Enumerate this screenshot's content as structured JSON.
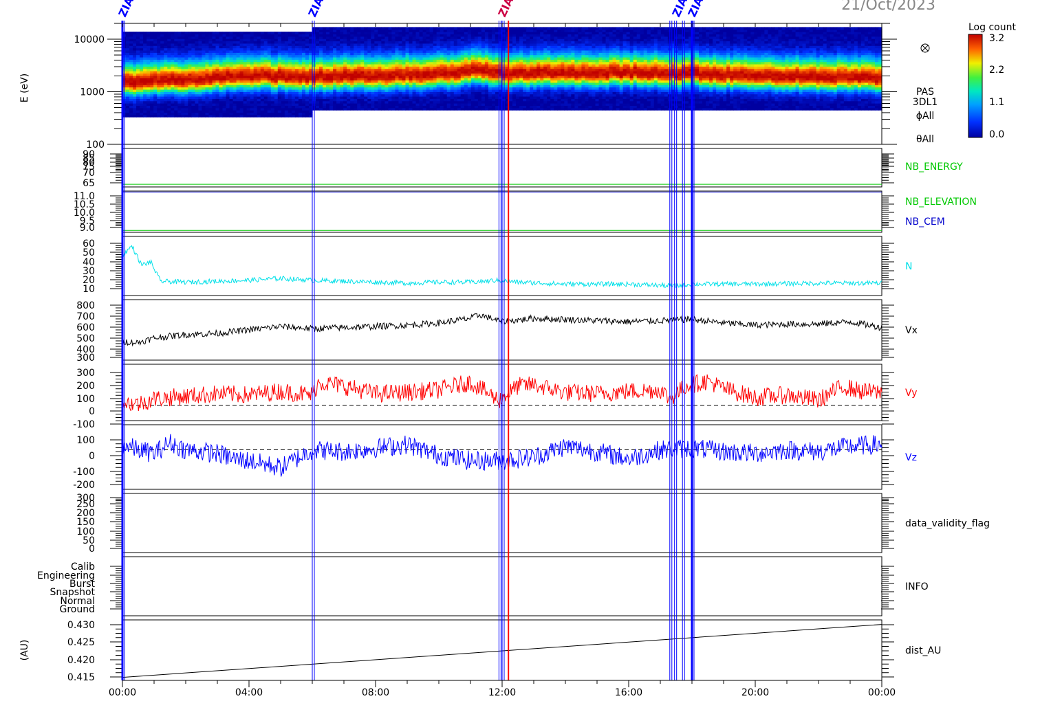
{
  "date_label": "21/Oct/2023",
  "colorbar": {
    "title": "Log count",
    "ticks": [
      "3.2",
      "2.2",
      "1.1",
      "0.0"
    ]
  },
  "spectrogram_labels": [
    "PAS",
    "3DL1",
    "ϕAll",
    "θAll"
  ],
  "marker_icon": "circled-times-icon",
  "event_marker_label": "ZIAS",
  "x_axis": {
    "ticks": [
      "00:00",
      "04:00",
      "08:00",
      "12:00",
      "16:00",
      "20:00",
      "00:00"
    ],
    "range_hours": [
      0,
      24
    ]
  },
  "event_lines_hours": [
    0.0,
    6.0,
    11.9,
    12.0,
    17.3,
    17.45,
    17.7,
    18.0
  ],
  "red_line_hours": 12.2,
  "colors": {
    "N": "#00e0e8",
    "Vx": "#000000",
    "Vy": "#ff0000",
    "Vz": "#0000ff",
    "event": "#0000ff",
    "energy": "#00c800",
    "cem": "#0000cc"
  },
  "chart_data": [
    {
      "type": "heatmap",
      "name": "PAS 3DL1",
      "ylabel": "E (eV)",
      "yscale": "log",
      "ylim": [
        100,
        20000
      ],
      "yticks": [
        "10000",
        "1000",
        "100"
      ],
      "color_scale": "Log count",
      "color_range": [
        0.0,
        3.2
      ],
      "peak_energy_eV": [
        {
          "h": 0,
          "e": 1500
        },
        {
          "h": 2,
          "e": 1700
        },
        {
          "h": 4,
          "e": 2000
        },
        {
          "h": 6,
          "e": 1900
        },
        {
          "h": 8,
          "e": 2000
        },
        {
          "h": 10,
          "e": 2100
        },
        {
          "h": 11.2,
          "e": 2600
        },
        {
          "h": 12,
          "e": 2200
        },
        {
          "h": 14,
          "e": 2300
        },
        {
          "h": 16,
          "e": 2300
        },
        {
          "h": 18,
          "e": 2200
        },
        {
          "h": 20,
          "e": 2000
        },
        {
          "h": 22,
          "e": 1900
        },
        {
          "h": 24,
          "e": 1800
        }
      ]
    },
    {
      "type": "line",
      "right_label": "NB_ENERGY",
      "yticks": [
        "90",
        "85",
        "80",
        "75",
        "70",
        "65"
      ],
      "ylim": [
        63,
        92
      ],
      "series": [
        {
          "name": "NB_ENERGY",
          "values": [
            65,
            65
          ]
        }
      ]
    },
    {
      "type": "line",
      "right_labels": [
        "NB_ELEVATION",
        "NB_CEM"
      ],
      "yticks": [
        "11.0",
        "10.5",
        "10.0",
        "9.5",
        "9.0"
      ],
      "ylim": [
        8.9,
        11.05
      ],
      "series": [
        {
          "name": "NB_ELEVATION",
          "values": [
            9.0,
            9.0
          ]
        },
        {
          "name": "NB_CEM",
          "values": [
            11.0,
            11.0
          ]
        }
      ]
    },
    {
      "type": "line",
      "right_label": "N",
      "yticks": [
        "60",
        "50",
        "40",
        "30",
        "20",
        "10"
      ],
      "ylim": [
        3,
        65
      ],
      "series": [
        {
          "name": "N",
          "x_hours": [
            0,
            0.3,
            0.6,
            0.9,
            1.2,
            2,
            3,
            4,
            5,
            6,
            7,
            8,
            9,
            10,
            11,
            11.9,
            12.5,
            14,
            16,
            17.5,
            18,
            20,
            22,
            24
          ],
          "values": [
            45,
            55,
            35,
            38,
            18,
            17,
            18,
            19,
            21,
            19,
            18,
            17,
            16,
            17,
            17,
            19,
            17,
            15,
            15,
            13,
            15,
            15,
            16,
            16
          ]
        }
      ]
    },
    {
      "type": "line",
      "right_label": "Vx",
      "yticks": [
        "800",
        "700",
        "600",
        "500",
        "400",
        "300"
      ],
      "ylim": [
        290,
        810
      ],
      "series": [
        {
          "name": "Vx",
          "x_hours": [
            0,
            0.5,
            1,
            2,
            3,
            4,
            5,
            6,
            7,
            8,
            9,
            10,
            11,
            11.3,
            12,
            13,
            14,
            15,
            16,
            17,
            18,
            19,
            20,
            21,
            22,
            23,
            24
          ],
          "values": [
            450,
            440,
            480,
            510,
            520,
            550,
            580,
            560,
            570,
            580,
            590,
            610,
            650,
            680,
            620,
            650,
            640,
            630,
            620,
            630,
            640,
            610,
            590,
            600,
            600,
            620,
            570
          ]
        }
      ]
    },
    {
      "type": "line",
      "right_label": "Vy",
      "yticks": [
        "300",
        "200",
        "100",
        "0",
        "-100"
      ],
      "ylim": [
        -120,
        320
      ],
      "series": [
        {
          "name": "Vy",
          "x_hours": [
            0,
            0.5,
            1,
            2,
            3,
            4,
            5,
            6,
            6.2,
            7,
            8,
            9,
            10,
            11,
            11.9,
            12.5,
            13,
            14,
            15,
            16,
            17,
            17.3,
            17.8,
            18.5,
            19,
            20,
            21,
            22,
            22.8,
            23.3,
            24
          ],
          "values": [
            20,
            10,
            50,
            70,
            90,
            80,
            110,
            80,
            180,
            150,
            90,
            100,
            120,
            180,
            40,
            150,
            160,
            100,
            90,
            110,
            120,
            50,
            150,
            190,
            130,
            60,
            80,
            40,
            150,
            110,
            100
          ]
        }
      ]
    },
    {
      "type": "line",
      "right_label": "Vz",
      "yticks": [
        "100",
        "0",
        "-100",
        "-200"
      ],
      "ylim": [
        -220,
        140
      ],
      "series": [
        {
          "name": "Vz",
          "x_hours": [
            0,
            0.5,
            1,
            1.5,
            2,
            3,
            3.5,
            4,
            5,
            5.5,
            6,
            7,
            8,
            9,
            10,
            11,
            12,
            13,
            14,
            15,
            16,
            17,
            18,
            19,
            20,
            21,
            22,
            23,
            24
          ],
          "values": [
            30,
            0,
            -20,
            40,
            0,
            -20,
            -50,
            -60,
            -100,
            -50,
            0,
            -10,
            10,
            30,
            -30,
            -60,
            -60,
            -40,
            20,
            -10,
            -50,
            0,
            10,
            -10,
            -20,
            0,
            -10,
            20,
            30
          ]
        }
      ]
    },
    {
      "type": "line",
      "right_label": "data_validity_flag",
      "yticks": [
        "300",
        "250",
        "200",
        "150",
        "100",
        "50",
        "0"
      ],
      "ylim": [
        -20,
        310
      ],
      "series": []
    },
    {
      "type": "line",
      "right_label": "INFO",
      "yticks": [
        "Calib",
        "Engineering",
        "Burst",
        "Snapshot",
        "Normal",
        "Ground"
      ],
      "series": []
    },
    {
      "type": "line",
      "right_label": "dist_AU",
      "ylabel": "(AU)",
      "yticks": [
        "0.430",
        "0.425",
        "0.420",
        "0.415"
      ],
      "ylim": [
        0.415,
        0.431
      ],
      "series": [
        {
          "name": "dist_AU",
          "x_hours": [
            0,
            24
          ],
          "values": [
            0.4158,
            0.4298
          ]
        }
      ]
    }
  ]
}
